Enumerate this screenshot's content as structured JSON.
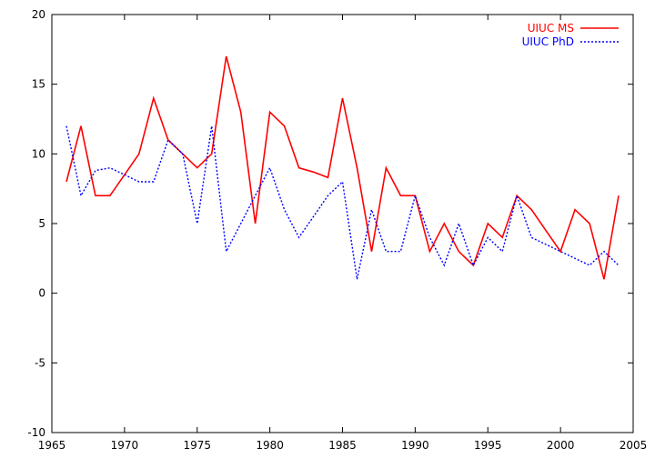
{
  "chart_data": {
    "type": "line",
    "title": "",
    "xlabel": "",
    "ylabel": "",
    "xlim": [
      1965,
      2005
    ],
    "ylim": [
      -10,
      20
    ],
    "xticks": [
      1965,
      1970,
      1975,
      1980,
      1985,
      1990,
      1995,
      2000,
      2005
    ],
    "yticks": [
      -10,
      -5,
      0,
      5,
      10,
      15,
      20
    ],
    "grid": false,
    "legend_position": "top-right",
    "series": [
      {
        "name": "UIUC MS",
        "color": "#ff0000",
        "style": "solid",
        "x": [
          1966,
          1967,
          1968,
          1969,
          1970,
          1971,
          1972,
          1973,
          1974,
          1975,
          1976,
          1977,
          1978,
          1979,
          1980,
          1981,
          1982,
          1983,
          1984,
          1985,
          1986,
          1987,
          1988,
          1989,
          1990,
          1991,
          1992,
          1993,
          1994,
          1995,
          1996,
          1997,
          1998,
          1999,
          2000,
          2001,
          2002,
          2003,
          2004
        ],
        "y": [
          8,
          12,
          7,
          7,
          8.5,
          10,
          14,
          11,
          10,
          9,
          10,
          17,
          13,
          5,
          13,
          12,
          9,
          8.7,
          8.3,
          14,
          9,
          3,
          9,
          7,
          7,
          3,
          5,
          3,
          2,
          5,
          4,
          7,
          6,
          4.5,
          3,
          6,
          5,
          1,
          7
        ]
      },
      {
        "name": "UIUC PhD",
        "color": "#0000ff",
        "style": "dotted",
        "x": [
          1966,
          1967,
          1968,
          1969,
          1970,
          1971,
          1972,
          1973,
          1974,
          1975,
          1976,
          1977,
          1978,
          1979,
          1980,
          1981,
          1982,
          1983,
          1984,
          1985,
          1986,
          1987,
          1988,
          1989,
          1990,
          1991,
          1992,
          1993,
          1994,
          1995,
          1996,
          1997,
          1998,
          1999,
          2000,
          2001,
          2002,
          2003,
          2004
        ],
        "y": [
          12,
          7,
          8.8,
          9,
          8.5,
          8,
          8,
          11,
          10,
          5,
          12,
          3,
          5,
          7,
          9,
          6,
          4,
          5.5,
          7,
          8,
          1,
          6,
          3,
          3,
          7,
          4,
          2,
          5,
          2,
          4,
          3,
          7,
          4,
          3.5,
          3,
          2.5,
          2,
          3,
          2
        ]
      }
    ]
  }
}
